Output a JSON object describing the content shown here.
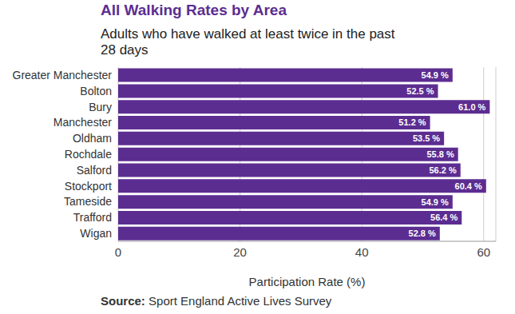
{
  "chart_data": {
    "type": "bar",
    "title": "All Walking Rates by Area",
    "subtitle": "Adults who have walked at least twice in the past 28 days",
    "categories": [
      "Greater Manchester",
      "Bolton",
      "Bury",
      "Manchester",
      "Oldham",
      "Rochdale",
      "Salford",
      "Stockport",
      "Tameside",
      "Trafford",
      "Wigan"
    ],
    "values": [
      54.9,
      52.5,
      61.0,
      51.2,
      53.5,
      55.8,
      56.2,
      60.4,
      54.9,
      56.4,
      52.8
    ],
    "value_labels": [
      "54.9 %",
      "52.5 %",
      "61.0 %",
      "51.2 %",
      "53.5 %",
      "55.8 %",
      "56.2 %",
      "60.4 %",
      "54.9 %",
      "56.4 %",
      "52.8 %"
    ],
    "color": "#5c2d91",
    "orientation": "horizontal",
    "data_labels": true,
    "grid": true,
    "xlim": [
      0,
      62
    ],
    "xticks": [
      0,
      20,
      40,
      60
    ],
    "xlabel": "Participation Rate (%)",
    "source_label": "Source:",
    "source": "Sport England Active Lives Survey"
  }
}
